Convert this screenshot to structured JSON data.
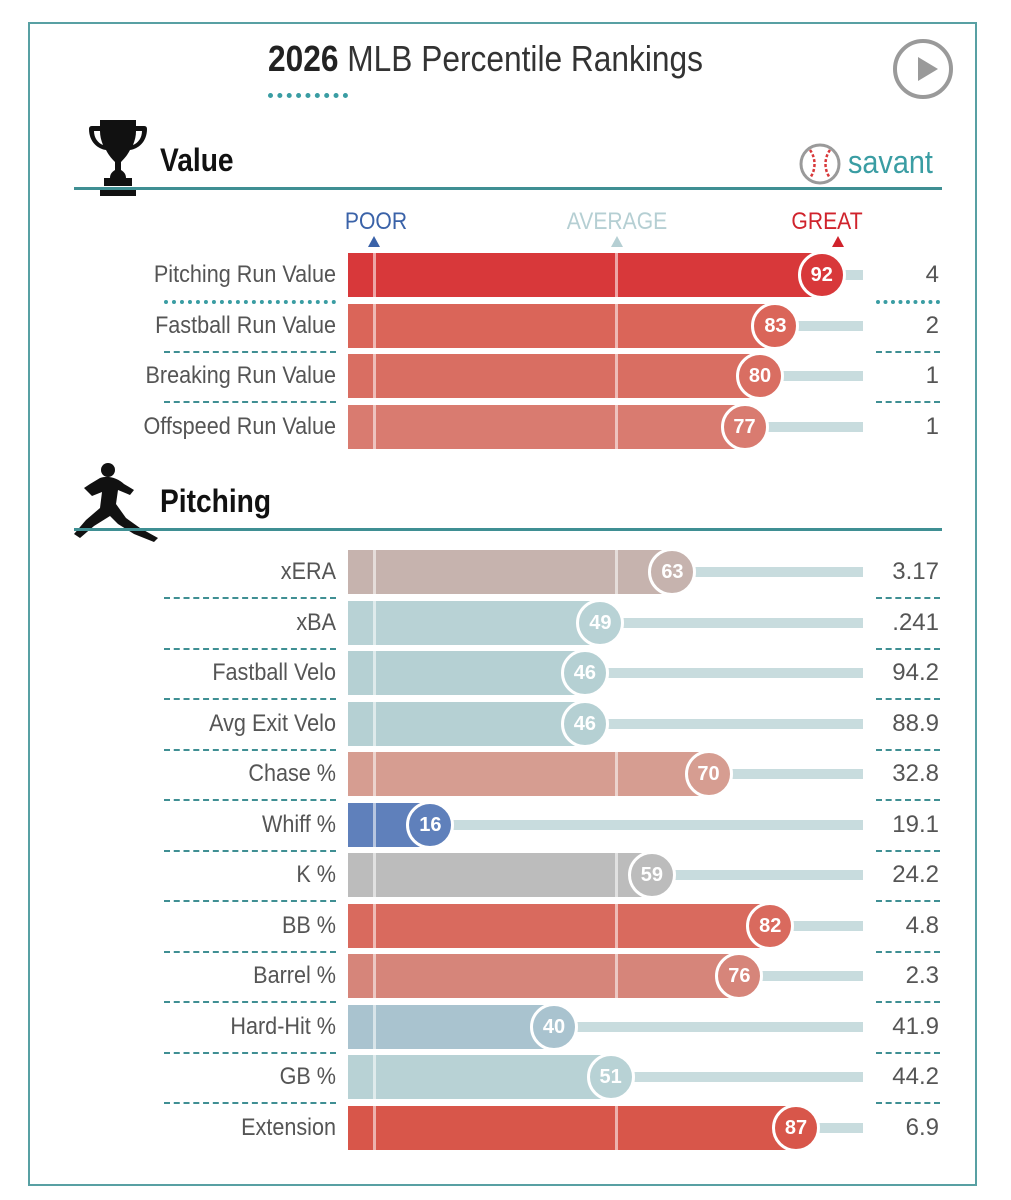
{
  "header": {
    "title_year": "2026",
    "title_rest": "MLB Percentile Rankings",
    "play_button": "play-icon"
  },
  "branding": {
    "logo_icon": "baseball-icon",
    "text": "savant"
  },
  "scale": {
    "poor": "POOR",
    "average": "AVERAGE",
    "great": "GREAT"
  },
  "colors": {
    "accent": "#3a9da3",
    "poor": "#3a62a8",
    "great": "#d0232c",
    "average": "#b5cfd3"
  },
  "chart_data": {
    "type": "bar",
    "title": "2026 MLB Percentile Rankings",
    "xlim": [
      0,
      100
    ],
    "sections": [
      {
        "name": "Value",
        "icon": "trophy-icon",
        "rows": [
          {
            "label": "Pitching Run Value",
            "percentile": 92,
            "value": "4",
            "color": "#d8383a"
          },
          {
            "label": "Fastball Run Value",
            "percentile": 83,
            "value": "2",
            "color": "#da6559"
          },
          {
            "label": "Breaking Run Value",
            "percentile": 80,
            "value": "1",
            "color": "#d96e62"
          },
          {
            "label": "Offspeed Run Value",
            "percentile": 77,
            "value": "1",
            "color": "#d97b70"
          }
        ]
      },
      {
        "name": "Pitching",
        "icon": "pitcher-icon",
        "rows": [
          {
            "label": "xERA",
            "percentile": 63,
            "value": "3.17",
            "color": "#c6b3ae"
          },
          {
            "label": "xBA",
            "percentile": 49,
            "value": ".241",
            "color": "#b8d2d5"
          },
          {
            "label": "Fastball Velo",
            "percentile": 46,
            "value": "94.2",
            "color": "#b5d0d3"
          },
          {
            "label": "Avg Exit Velo",
            "percentile": 46,
            "value": "88.9",
            "color": "#b5d0d3"
          },
          {
            "label": "Chase %",
            "percentile": 70,
            "value": "32.8",
            "color": "#d69d91"
          },
          {
            "label": "Whiff %",
            "percentile": 16,
            "value": "19.1",
            "color": "#5f80bb"
          },
          {
            "label": "K %",
            "percentile": 59,
            "value": "24.2",
            "color": "#bcbcbc"
          },
          {
            "label": "BB %",
            "percentile": 82,
            "value": "4.8",
            "color": "#d96a5e"
          },
          {
            "label": "Barrel %",
            "percentile": 76,
            "value": "2.3",
            "color": "#d6857a"
          },
          {
            "label": "Hard-Hit %",
            "percentile": 40,
            "value": "41.9",
            "color": "#a9c3cf"
          },
          {
            "label": "GB %",
            "percentile": 51,
            "value": "44.2",
            "color": "#b8d2d5"
          },
          {
            "label": "Extension",
            "percentile": 87,
            "value": "6.9",
            "color": "#d8564a"
          }
        ]
      }
    ]
  }
}
